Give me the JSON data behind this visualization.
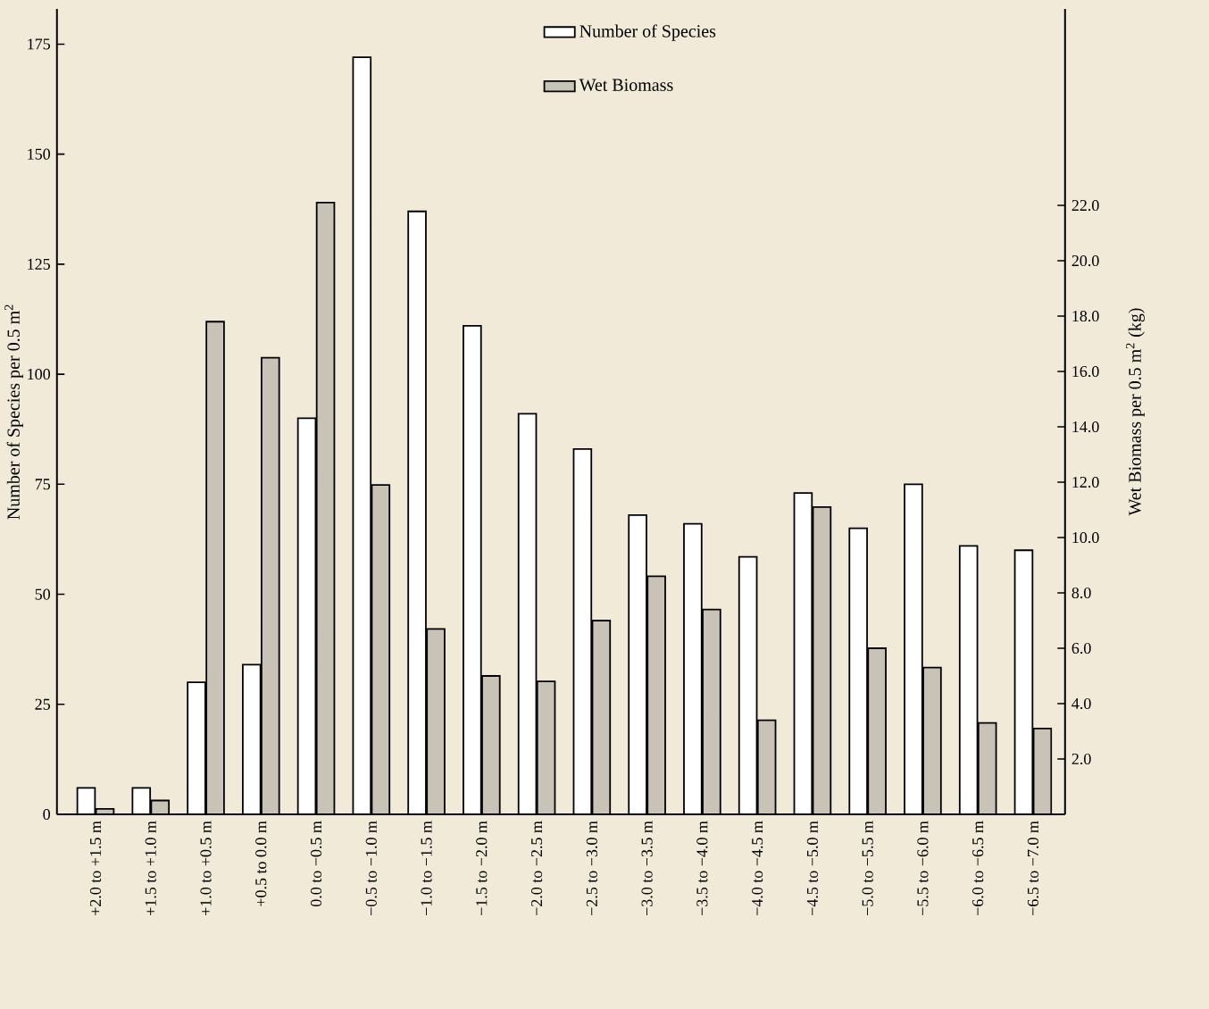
{
  "chart_data": {
    "type": "bar",
    "ylabel": "Number of Species per 0.5 m$^{2}$",
    "y2label": "Wet Biomass per 0.5 m$^{2}$ (kg)",
    "categories": [
      "+2.0 to +1.5 m",
      "+1.5 to +1.0 m",
      "+1.0 to +0.5 m",
      "+0.5 to 0.0 m",
      "0.0 to −0.5 m",
      "−0.5 to −1.0 m",
      "−1.0 to −1.5 m",
      "−1.5 to −2.0 m",
      "−2.0 to −2.5 m",
      "−2.5 to −3.0 m",
      "−3.0 to −3.5 m",
      "−3.5 to −4.0 m",
      "−4.0 to −4.5 m",
      "−4.5 to −5.0 m",
      "−5.0 to −5.5 m",
      "−5.5 to −6.0 m",
      "−6.0 to −6.5 m",
      "−6.5 to −7.0 m"
    ],
    "series": [
      {
        "name": "Number of Species",
        "color": "#ffffff",
        "values": [
          6,
          6,
          30,
          34,
          90,
          172,
          137,
          111,
          91,
          83,
          68,
          66,
          58.5,
          73,
          65,
          75,
          61,
          60
        ]
      },
      {
        "name": "Wet Biomass",
        "color": "#c9c2b6",
        "axis": "y2",
        "values": [
          0.2,
          0.5,
          17.8,
          16.5,
          22.1,
          11.9,
          6.7,
          5.0,
          4.8,
          7.0,
          8.6,
          7.4,
          3.4,
          11.1,
          6.0,
          5.3,
          3.3,
          3.1
        ]
      }
    ],
    "ylim": [
      0,
      183
    ],
    "yticks": [
      0,
      25,
      50,
      75,
      100,
      125,
      150,
      175
    ],
    "y2lim": [
      0,
      29.1
    ],
    "y2ticks": [
      {
        "value": 2,
        "label": "2.0"
      },
      {
        "value": 4,
        "label": "4.0"
      },
      {
        "value": 6,
        "label": "6.0"
      },
      {
        "value": 8,
        "label": "8.0"
      },
      {
        "value": 10,
        "label": "10.0"
      },
      {
        "value": 12,
        "label": "12.0"
      },
      {
        "value": 14,
        "label": "14.0"
      },
      {
        "value": 16,
        "label": "16.0"
      },
      {
        "value": 18,
        "label": "18.0"
      },
      {
        "value": 20,
        "label": "20.0"
      },
      {
        "value": 22,
        "label": "22.0"
      }
    ],
    "legend": "top",
    "grid": false
  }
}
